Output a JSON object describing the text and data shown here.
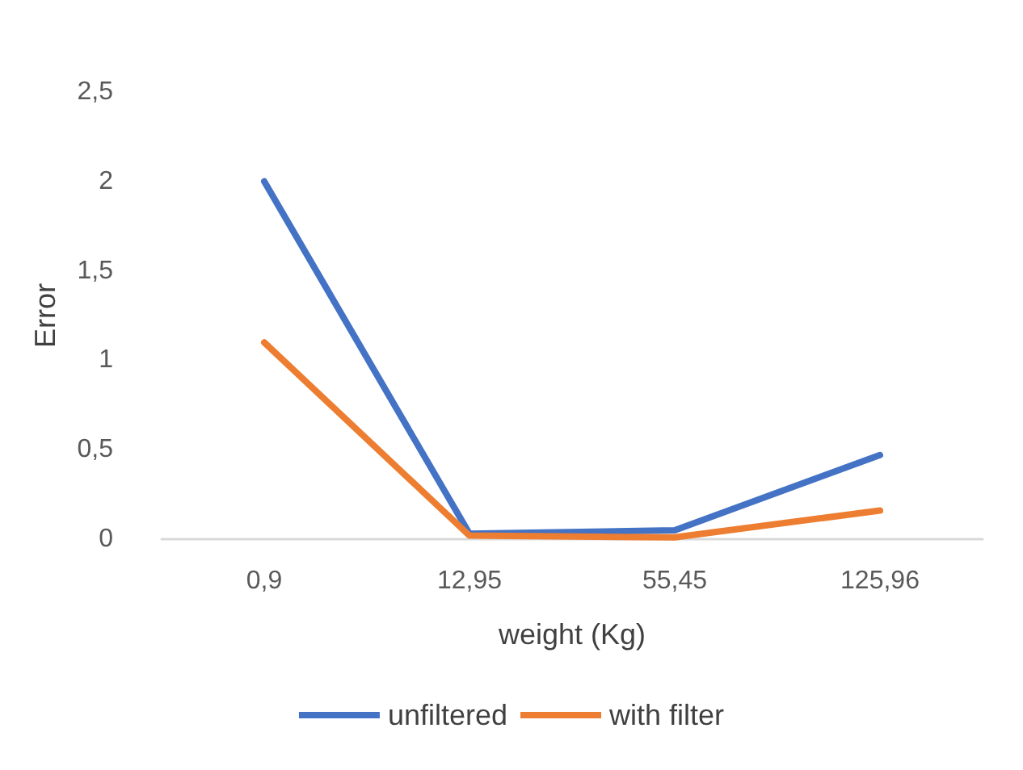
{
  "chart_data": {
    "type": "line",
    "xlabel": "weight (Kg)",
    "ylabel": "Error",
    "categories": [
      "0,9",
      "12,95",
      "55,45",
      "125,96"
    ],
    "series": [
      {
        "name": "unfiltered",
        "color": "#4472c4",
        "values": [
          2.0,
          0.03,
          0.05,
          0.47
        ]
      },
      {
        "name": "with filter",
        "color": "#ed7d31",
        "values": [
          1.1,
          0.02,
          0.01,
          0.16
        ]
      }
    ],
    "ylim": [
      0,
      2.5
    ],
    "yticks": [
      0,
      {
        "value": 0.5,
        "label": "0,5"
      },
      1,
      {
        "value": 1.5,
        "label": "1,5"
      },
      2,
      {
        "value": 2.5,
        "label": "2,5"
      }
    ],
    "grid": false,
    "legend": "bottom",
    "marker": "none",
    "line_style": "solid"
  }
}
